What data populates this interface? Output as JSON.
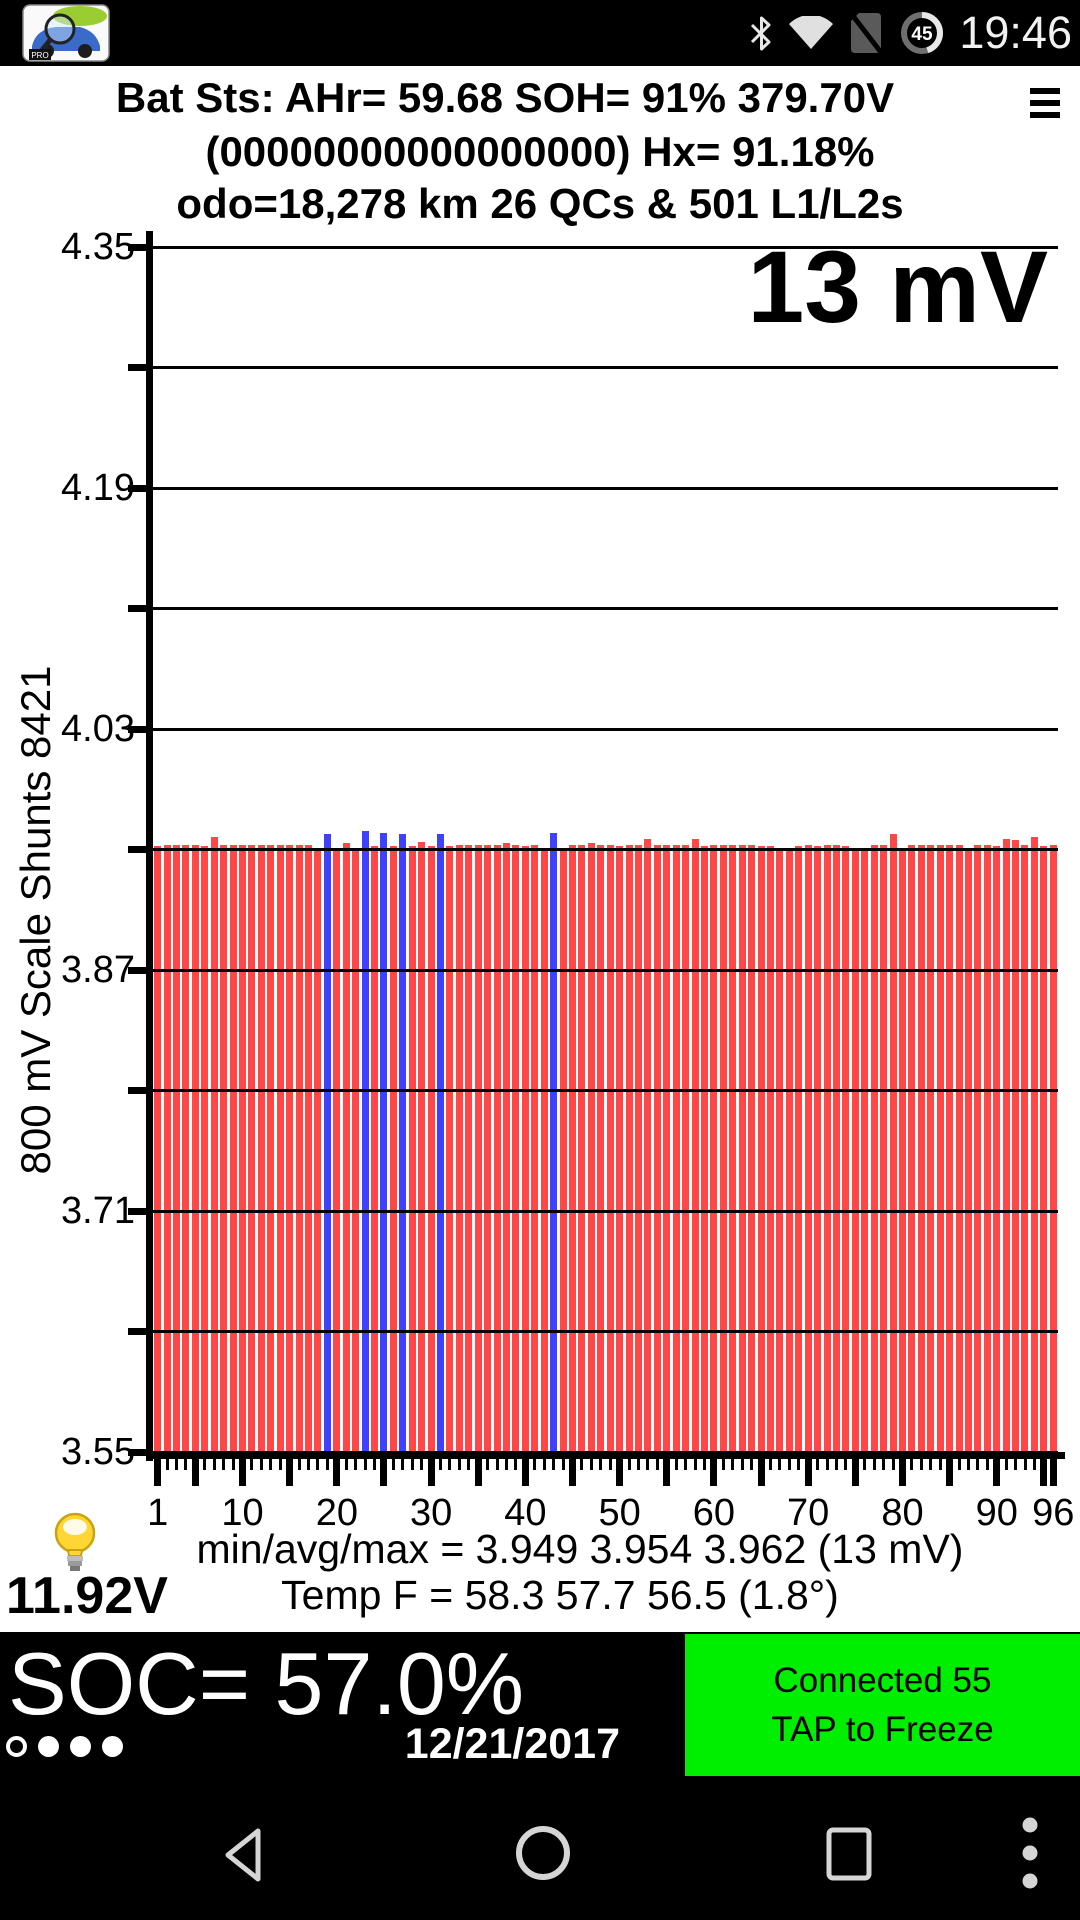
{
  "status_bar": {
    "time": "19:46",
    "battery_level": "45",
    "icons": [
      "leafspy-app-icon",
      "bluetooth-icon",
      "wifi-icon",
      "no-sim-icon",
      "battery-circle-icon"
    ]
  },
  "header": {
    "line1": "Bat Sts: AHr= 59.68 SOH= 91% 379.70V",
    "line2": "(00000000000000000)   Hx= 91.18%",
    "line3": "odo=18,278 km 26 QCs & 501 L1/L2s",
    "menu_icon": "hamburger-menu-icon"
  },
  "chart_data": {
    "type": "bar",
    "title_overlay": "13 mV",
    "ylabel": "800 mV Scale  Shunts 8421",
    "xlabel": "",
    "ylim": [
      3.55,
      4.35
    ],
    "y_major_ticks": [
      "4.35",
      "4.19",
      "4.03",
      "3.87",
      "3.71",
      "3.55"
    ],
    "y_gridline_step": 0.08,
    "grid": true,
    "cells": 96,
    "x_tick_labels": [
      1,
      10,
      20,
      30,
      40,
      50,
      60,
      70,
      80,
      90,
      96
    ],
    "x_major_tick_every": 5,
    "bar_color": "#ff4747",
    "shunt_color": "#4040ff",
    "shunt_cells": [
      19,
      23,
      25,
      27,
      31,
      43
    ],
    "values": [
      3.952,
      3.953,
      3.953,
      3.953,
      3.953,
      3.952,
      3.958,
      3.953,
      3.953,
      3.953,
      3.953,
      3.953,
      3.953,
      3.953,
      3.953,
      3.953,
      3.953,
      3.951,
      3.96,
      3.951,
      3.954,
      3.951,
      3.962,
      3.952,
      3.961,
      3.952,
      3.96,
      3.952,
      3.955,
      3.952,
      3.96,
      3.952,
      3.953,
      3.953,
      3.953,
      3.953,
      3.953,
      3.954,
      3.953,
      3.952,
      3.953,
      3.951,
      3.961,
      3.951,
      3.953,
      3.953,
      3.954,
      3.953,
      3.953,
      3.952,
      3.953,
      3.953,
      3.957,
      3.953,
      3.953,
      3.953,
      3.953,
      3.957,
      3.952,
      3.953,
      3.953,
      3.953,
      3.953,
      3.953,
      3.952,
      3.952,
      3.95,
      3.949,
      3.952,
      3.953,
      3.952,
      3.953,
      3.953,
      3.952,
      3.95,
      3.949,
      3.953,
      3.953,
      3.96,
      3.95,
      3.953,
      3.953,
      3.953,
      3.953,
      3.953,
      3.953,
      3.951,
      3.953,
      3.953,
      3.952,
      3.957,
      3.956,
      3.953,
      3.958,
      3.952,
      3.953
    ]
  },
  "stats": {
    "min_avg_max": "min/avg/max = 3.949 3.954 3.962  (13 mV)",
    "temp": "Temp F = 58.3  57.7  56.5  (1.8°)",
    "aux_battery": "11.92V",
    "bulb_icon": "bulb-icon"
  },
  "footer": {
    "soc": "SOC= 57.0%",
    "date": "12/21/2017",
    "connection": {
      "line1": "Connected 55",
      "line2": "TAP to Freeze",
      "bg": "#00ee00"
    },
    "page_indicator": {
      "current": 1,
      "total": 4
    }
  },
  "nav_bar": {
    "icons": [
      "back-icon",
      "home-icon",
      "recents-icon",
      "overflow-menu-icon"
    ]
  }
}
